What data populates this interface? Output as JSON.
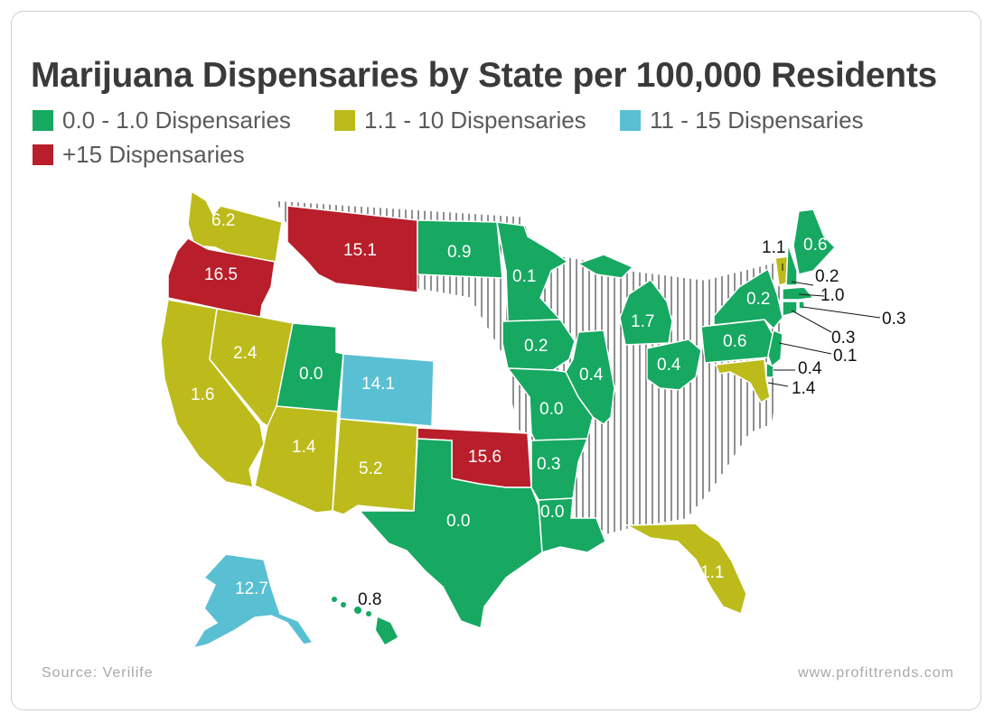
{
  "title": "Marijuana Dispensaries by State per 100,000 Residents",
  "legend": [
    {
      "label": "0.0 - 1.0 Dispensaries",
      "color": "#17a862"
    },
    {
      "label": "1.1 - 10 Dispensaries",
      "color": "#bcbb1b"
    },
    {
      "label": "11 - 15 Dispensaries",
      "color": "#59bfd3"
    },
    {
      "label": "+15 Dispensaries",
      "color": "#b81f2a"
    }
  ],
  "source": "Source: Verilife",
  "website": "www.profittrends.com",
  "states": {
    "washington": "6.2",
    "oregon": "16.5",
    "montana": "15.1",
    "north_dakota": "0.9",
    "minnesota": "0.1",
    "california": "1.6",
    "nevada": "2.4",
    "utah": "0.0",
    "colorado": "14.1",
    "arizona": "1.4",
    "new_mexico": "5.2",
    "oklahoma": "15.6",
    "texas": "0.0",
    "iowa": "0.2",
    "illinois": "0.4",
    "missouri": "0.0",
    "arkansas": "0.3",
    "louisiana": "0.0",
    "michigan": "1.7",
    "ohio": "0.4",
    "pennsylvania": "0.6",
    "new_york": "0.2",
    "vermont": "1.1",
    "maine": "0.6",
    "new_hampshire": "0.2",
    "massachusetts": "1.0",
    "rhode_island": "0.3",
    "connecticut": "0.3",
    "new_jersey": "0.1",
    "delaware": "0.4",
    "maryland": "1.4",
    "florida": "1.1",
    "alaska": "12.7",
    "hawaii": "0.8"
  }
}
